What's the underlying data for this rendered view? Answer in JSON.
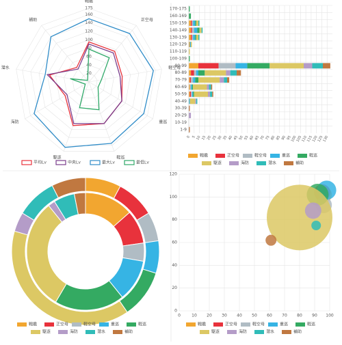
{
  "chart_data": [
    {
      "type": "radar",
      "categories": [
        "戦艦",
        "正空母",
        "軽空母",
        "重巡",
        "軽巡",
        "駆逐",
        "海防",
        "潜水",
        "補助"
      ],
      "rlim": [
        0,
        175
      ],
      "rticks": [
        20,
        40,
        60,
        80,
        100,
        120,
        140,
        160,
        175
      ],
      "grid": true,
      "series": [
        {
          "name": "平均Lv",
          "color": "#e8323c",
          "values": [
            95,
            95,
            80,
            90,
            105,
            110,
            65,
            95,
            45
          ]
        },
        {
          "name": "中央Lv",
          "color": "#7a3c8c",
          "values": [
            90,
            90,
            75,
            90,
            105,
            105,
            60,
            100,
            40
          ]
        },
        {
          "name": "最大Lv",
          "color": "#2f8cc8",
          "values": [
            150,
            150,
            155,
            150,
            155,
            165,
            150,
            105,
            140
          ]
        },
        {
          "name": "最低Lv",
          "color": "#2ea868",
          "values": [
            78,
            75,
            30,
            25,
            70,
            65,
            10,
            45,
            5
          ]
        }
      ]
    },
    {
      "type": "hbar",
      "categories": [
        "170-175",
        "160-169",
        "150-159",
        "140-149",
        "130-139",
        "120-129",
        "110-119",
        "100-109",
        "90-99",
        "80-89",
        "70-79",
        "60-69",
        "50-59",
        "40-49",
        "30-39",
        "20-29",
        "10-19",
        "1-9"
      ],
      "xlim": [
        0,
        135
      ],
      "xticks": [
        0,
        5,
        10,
        15,
        20,
        25,
        30,
        35,
        40,
        45,
        50,
        55,
        60,
        65,
        70,
        75,
        80,
        85,
        90,
        95,
        100,
        105,
        110,
        115,
        120,
        125,
        130
      ],
      "grid": true,
      "stacked": true,
      "series": [
        {
          "name": "戦艦",
          "color": "#f2a630",
          "values": [
            0,
            0,
            2,
            2,
            2,
            1,
            0,
            0,
            9,
            2,
            1,
            1,
            1,
            0,
            0,
            0,
            0,
            0
          ]
        },
        {
          "name": "正空母",
          "color": "#e8323c",
          "values": [
            0,
            0,
            1,
            1,
            1,
            0,
            0,
            0,
            19,
            3,
            1,
            0,
            1,
            0,
            0,
            0,
            0,
            0
          ]
        },
        {
          "name": "軽空母",
          "color": "#b0bcc4",
          "values": [
            0,
            0,
            1,
            2,
            1,
            0,
            0,
            0,
            16,
            2,
            2,
            1,
            1,
            0,
            0,
            0,
            0,
            0
          ]
        },
        {
          "name": "重巡",
          "color": "#36b4e4",
          "values": [
            0,
            0,
            2,
            3,
            2,
            1,
            0,
            0,
            11,
            2,
            2,
            1,
            1,
            1,
            0,
            0,
            0,
            0
          ]
        },
        {
          "name": "軽巡",
          "color": "#34aa62",
          "values": [
            1,
            2,
            1,
            2,
            1,
            0,
            0,
            1,
            21,
            6,
            3,
            1,
            1,
            0,
            0,
            0,
            0,
            0
          ]
        },
        {
          "name": "駆逐",
          "color": "#dcc864",
          "values": [
            0,
            0,
            2,
            2,
            2,
            1,
            1,
            0,
            32,
            20,
            20,
            13,
            13,
            5,
            0,
            0,
            0,
            0
          ]
        },
        {
          "name": "海防",
          "color": "#b49cc8",
          "values": [
            0,
            0,
            0,
            0,
            0,
            0,
            0,
            0,
            8,
            4,
            4,
            2,
            2,
            1,
            0,
            2,
            0,
            0
          ]
        },
        {
          "name": "潜水",
          "color": "#30bcb8",
          "values": [
            0,
            0,
            1,
            1,
            1,
            0,
            0,
            0,
            10,
            6,
            3,
            2,
            2,
            1,
            0,
            0,
            0,
            0
          ]
        },
        {
          "name": "補助",
          "color": "#c07840",
          "values": [
            0,
            0,
            0,
            0,
            0,
            0,
            0,
            0,
            7,
            4,
            2,
            1,
            1,
            0,
            1,
            0,
            0,
            1
          ]
        }
      ]
    },
    {
      "type": "doughnut",
      "categories": [
        "戦艦",
        "正空母",
        "軽空母",
        "重巡",
        "軽巡",
        "駆逐",
        "海防",
        "潜水",
        "補助"
      ],
      "colors": [
        "#f2a630",
        "#e8323c",
        "#b0bcc4",
        "#36b4e4",
        "#34aa62",
        "#dcc864",
        "#b49cc8",
        "#30bcb8",
        "#c07840"
      ],
      "rings": [
        [
          22,
          24,
          18,
          20,
          30,
          110,
          12,
          25,
          21
        ],
        [
          35,
          24,
          13,
          30,
          50,
          80,
          5,
          15,
          8
        ]
      ]
    },
    {
      "type": "bubble",
      "xlim": [
        0,
        100
      ],
      "xticks": [
        0,
        10,
        20,
        30,
        40,
        50,
        60,
        70,
        80,
        90,
        100
      ],
      "ylim": [
        0,
        120
      ],
      "yticks": [
        0,
        20,
        40,
        60,
        80,
        100,
        120
      ],
      "grid": true,
      "series": [
        {
          "name": "戦艦",
          "color": "#f2a630",
          "x": 96,
          "y": 102,
          "r": 12
        },
        {
          "name": "正空母",
          "color": "#e8323c",
          "x": 95,
          "y": 104,
          "r": 12
        },
        {
          "name": "軽空母",
          "color": "#b0bcc4",
          "x": 96,
          "y": 93,
          "r": 12
        },
        {
          "name": "重巡",
          "color": "#36b4e4",
          "x": 98,
          "y": 106,
          "r": 14
        },
        {
          "name": "軽巡",
          "color": "#34aa62",
          "x": 92,
          "y": 102,
          "r": 16
        },
        {
          "name": "駆逐",
          "color": "#dcc864",
          "x": 80,
          "y": 82,
          "r": 48
        },
        {
          "name": "海防",
          "color": "#b49cc8",
          "x": 89,
          "y": 88,
          "r": 12
        },
        {
          "name": "潜水",
          "color": "#30bcb8",
          "x": 91,
          "y": 75,
          "r": 7
        },
        {
          "name": "補助",
          "color": "#c07840",
          "x": 61,
          "y": 62,
          "r": 8
        }
      ]
    }
  ]
}
